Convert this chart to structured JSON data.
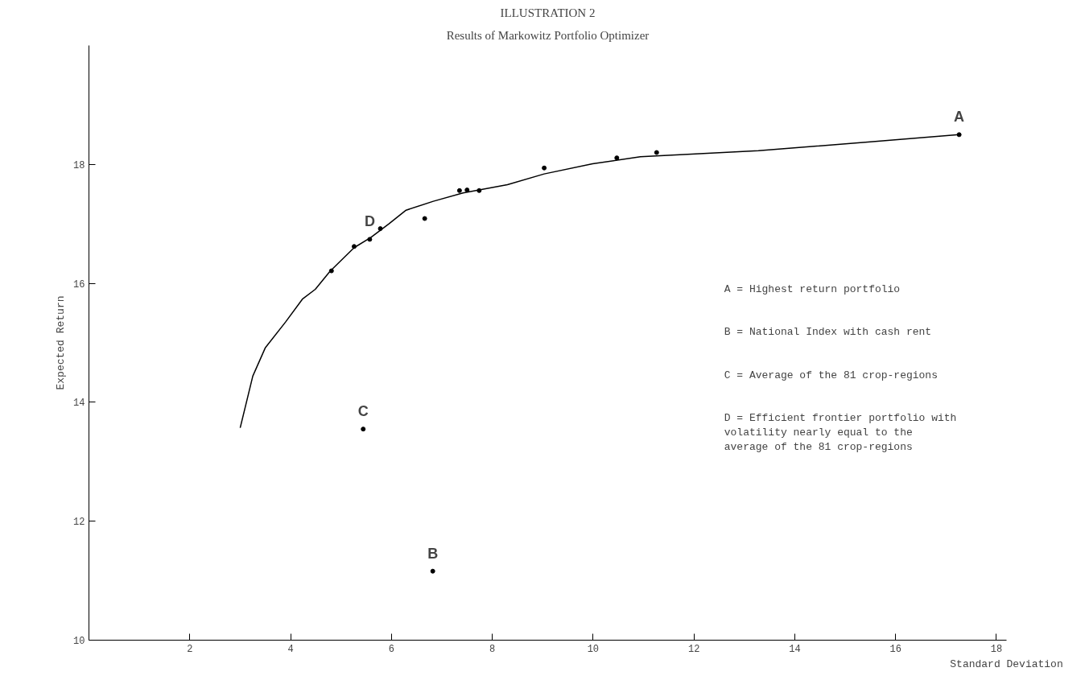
{
  "chart_data": {
    "type": "line",
    "title": "ILLUSTRATION 2",
    "subtitle": "Results of Markowitz Portfolio Optimizer",
    "xlabel": "Standard Deviation",
    "ylabel": "Expected Return",
    "xlim": [
      0,
      18.2
    ],
    "ylim": [
      10,
      20
    ],
    "xticks": [
      2,
      4,
      6,
      8,
      10,
      12,
      14,
      16,
      18
    ],
    "yticks": [
      10,
      12,
      14,
      16,
      18
    ],
    "grid": false,
    "series": [
      {
        "marker": "none",
        "color": "#000000",
        "x": [
          3.0,
          3.25,
          3.5,
          3.9,
          4.24,
          4.49,
          4.78,
          5.26,
          5.59,
          5.95,
          6.29,
          6.83,
          7.42,
          8.3,
          9.03,
          9.99,
          10.94,
          13.28,
          15.5,
          17.26
        ],
        "values": [
          13.57,
          14.44,
          14.92,
          15.35,
          15.74,
          15.9,
          16.2,
          16.6,
          16.77,
          17.0,
          17.23,
          17.38,
          17.52,
          17.66,
          17.84,
          18.01,
          18.13,
          18.23,
          18.38,
          18.5
        ]
      },
      {
        "type": "scatter",
        "marker": "circle",
        "color": "#000000",
        "x": [
          4.81,
          5.26,
          5.78,
          6.66,
          7.35,
          7.5,
          7.74,
          9.03,
          10.47,
          11.26
        ],
        "values": [
          16.21,
          16.62,
          16.92,
          17.09,
          17.56,
          17.57,
          17.56,
          17.94,
          18.11,
          18.2
        ]
      },
      {
        "type": "scatter",
        "marker": "circle",
        "color": "#000000",
        "x": [
          17.26,
          6.82,
          5.44,
          5.57
        ],
        "values": [
          18.5,
          11.16,
          13.55,
          16.74
        ]
      }
    ],
    "annotations": [
      {
        "text": "A",
        "x": 17.26,
        "y": 18.5
      },
      {
        "text": "B",
        "x": 6.82,
        "y": 11.16
      },
      {
        "text": "C",
        "x": 5.44,
        "y": 13.55
      },
      {
        "text": "D",
        "x": 5.57,
        "y": 16.74
      },
      "A = Highest return portfolio",
      "B = National Index with cash rent",
      "C = Average of the 81 crop-regions",
      "D = Efficient frontier portfolio with\n   volatility nearly equal to the\n   average of the 81 crop-regions"
    ]
  }
}
